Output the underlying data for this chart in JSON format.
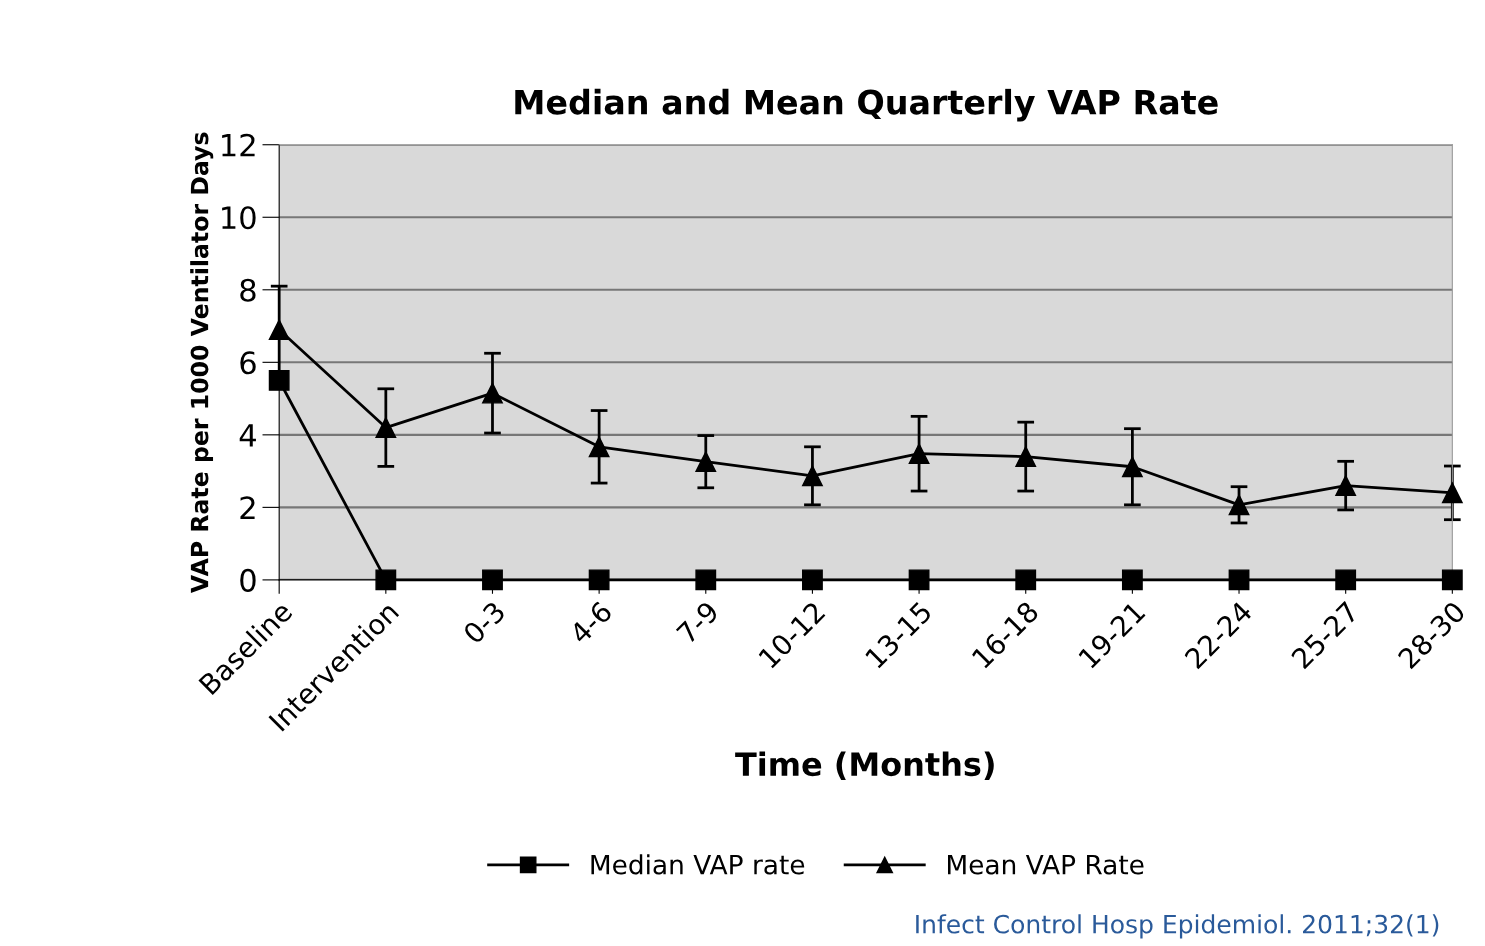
{
  "chart_data": {
    "type": "line",
    "title": "Median and Mean Quarterly VAP Rate",
    "xlabel": "Time (Months)",
    "ylabel": "VAP Rate per 1000 Ventilator Days",
    "categories": [
      "Baseline",
      "Intervention",
      "0-3",
      "4-6",
      "7-9",
      "10-12",
      "13-15",
      "16-18",
      "19-21",
      "22-24",
      "25-27",
      "28-30"
    ],
    "series": [
      {
        "name": "Median VAP rate",
        "color": "#000000",
        "marker": "square",
        "values": [
          5.5,
          0,
          0,
          0,
          0,
          0,
          0,
          0,
          0,
          0,
          0,
          0
        ]
      },
      {
        "name": "Mean VAP Rate",
        "color": "#000000",
        "marker": "triangle",
        "values": [
          6.9,
          4.2,
          5.15,
          3.67,
          3.26,
          2.87,
          3.48,
          3.4,
          3.12,
          2.07,
          2.6,
          2.4
        ],
        "errors": [
          1.2,
          1.07,
          1.1,
          1.0,
          0.72,
          0.8,
          1.03,
          0.95,
          1.05,
          0.5,
          0.67,
          0.74
        ]
      }
    ],
    "ylim": [
      0,
      12
    ],
    "yticks": [
      0,
      2,
      4,
      6,
      8,
      10,
      12
    ],
    "grid": "y",
    "legend": "bottom",
    "line_style": "solid",
    "annotations": [
      "Infect Control Hosp Epidemiol. 2011;32(1)"
    ]
  }
}
